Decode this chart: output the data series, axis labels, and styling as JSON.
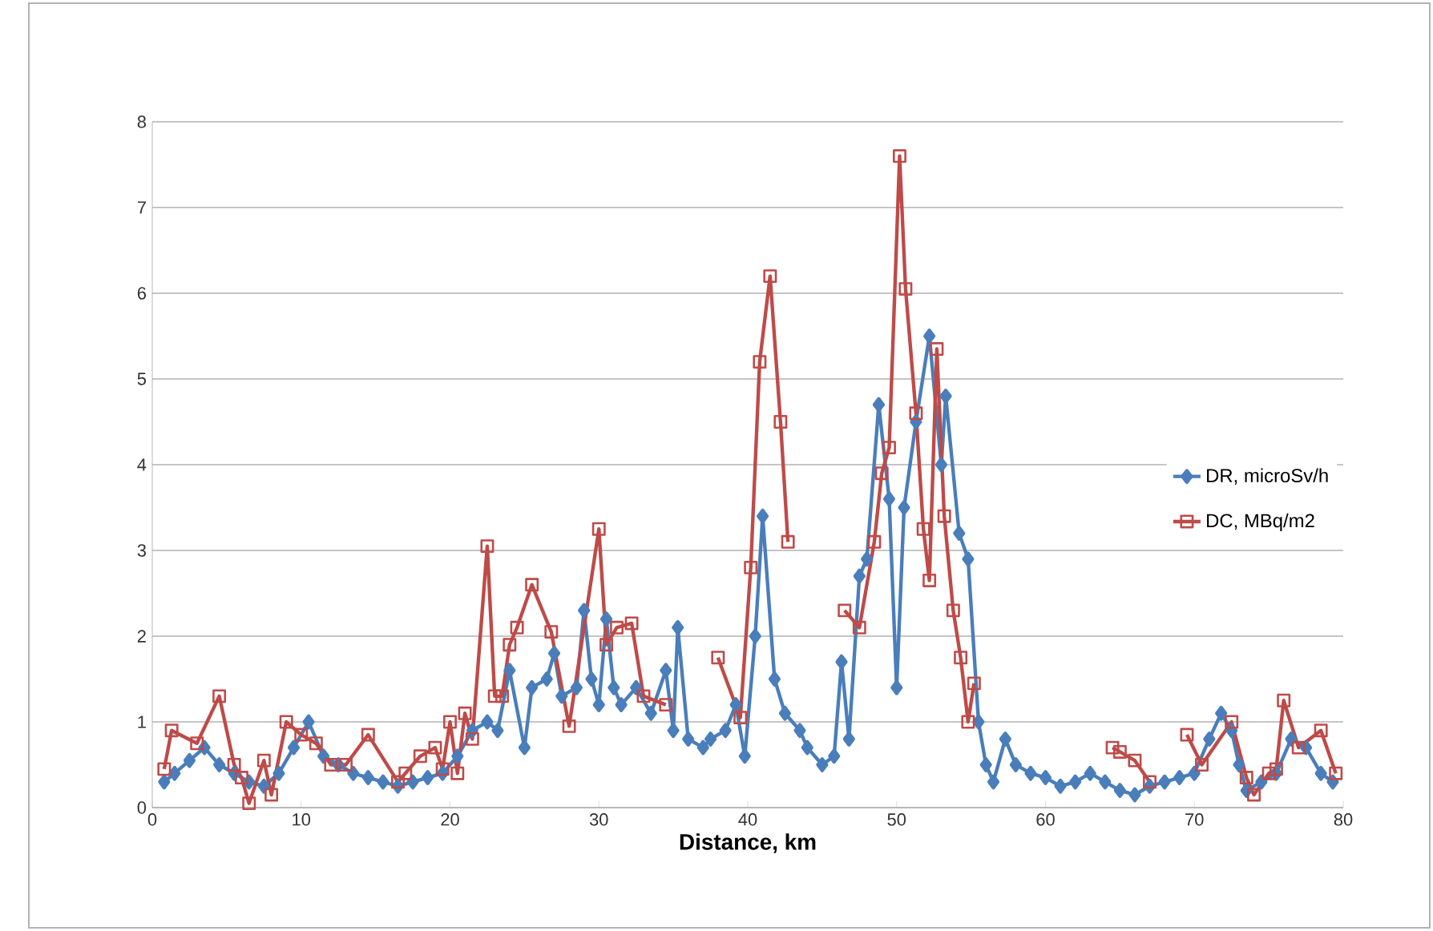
{
  "chart_data": {
    "type": "line",
    "xlabel": "Distance, km",
    "xlim": [
      0,
      80
    ],
    "xticks": [
      0,
      10,
      20,
      30,
      40,
      50,
      60,
      70,
      80
    ],
    "ylim": [
      0,
      8
    ],
    "yticks": [
      0,
      1,
      2,
      3,
      4,
      5,
      6,
      7,
      8
    ],
    "grid": "y",
    "legend": "right",
    "line_style": "solid",
    "series": [
      {
        "name": "DR, microSv/h",
        "color": "#4a7ebb",
        "marker": "diamond",
        "x": [
          0.8,
          1.5,
          2.5,
          3.5,
          4.5,
          5.5,
          6.5,
          7.5,
          8.5,
          9.5,
          10.5,
          11.5,
          12.5,
          13.5,
          14.5,
          15.5,
          16.5,
          17.5,
          18.5,
          19.5,
          20.5,
          21.5,
          22.5,
          23.2,
          24,
          25,
          25.5,
          26.5,
          27,
          27.5,
          28.5,
          29,
          29.5,
          30,
          30.5,
          31,
          31.5,
          32.5,
          33.5,
          34.5,
          35,
          35.3,
          36,
          37,
          37.5,
          38.5,
          39.2,
          39.8,
          40.5,
          41,
          41.8,
          42.5,
          43.5,
          44,
          45,
          45.8,
          46.3,
          46.8,
          47.5,
          48,
          48.8,
          49.5,
          50,
          50.5,
          51.3,
          52.2,
          53,
          53.3,
          54.2,
          54.8,
          55.5,
          56,
          56.5,
          57.3,
          58,
          59,
          60,
          61,
          62,
          63,
          64,
          65,
          66,
          67,
          68,
          69,
          70,
          71,
          71.8,
          72.5,
          73,
          73.5,
          74.5,
          75.5,
          76.5,
          77.5,
          78.5,
          79.3
        ],
        "values": [
          0.3,
          0.4,
          0.55,
          0.7,
          0.5,
          0.4,
          0.3,
          0.25,
          0.4,
          0.7,
          1.0,
          0.6,
          0.5,
          0.4,
          0.35,
          0.3,
          0.25,
          0.3,
          0.35,
          0.4,
          0.6,
          0.9,
          1.0,
          0.9,
          1.6,
          0.7,
          1.4,
          1.5,
          1.8,
          1.3,
          1.4,
          2.3,
          1.5,
          1.2,
          2.2,
          1.4,
          1.2,
          1.4,
          1.1,
          1.6,
          0.9,
          2.1,
          0.8,
          0.7,
          0.8,
          0.9,
          1.2,
          0.6,
          2.0,
          3.4,
          1.5,
          1.1,
          0.9,
          0.7,
          0.5,
          0.6,
          1.7,
          0.8,
          2.7,
          2.9,
          4.7,
          3.6,
          1.4,
          3.5,
          4.5,
          5.5,
          4.0,
          4.8,
          3.2,
          2.9,
          1.0,
          0.5,
          0.3,
          0.8,
          0.5,
          0.4,
          0.35,
          0.25,
          0.3,
          0.4,
          0.3,
          0.2,
          0.15,
          0.25,
          0.3,
          0.35,
          0.4,
          0.8,
          1.1,
          0.9,
          0.5,
          0.2,
          0.3,
          0.4,
          0.8,
          0.7,
          0.4,
          0.3
        ]
      },
      {
        "name": "DC, MBq/m2",
        "color": "#be4b48",
        "marker": "square",
        "x": [
          0.8,
          1.3,
          3,
          4.5,
          5.5,
          6,
          6.5,
          7.5,
          8,
          9,
          10,
          11,
          12,
          13,
          14.5,
          16.5,
          17,
          18,
          19,
          19.5,
          20,
          20.5,
          21,
          21.5,
          22.5,
          23,
          23.5,
          24,
          24.5,
          25.5,
          26.8,
          28,
          30,
          30.5,
          31.2,
          32.2,
          33,
          34.5,
          36,
          38,
          39.5,
          40.2,
          40.8,
          41.5,
          42.2,
          42.7,
          44.5,
          46.5,
          47.5,
          48.5,
          49,
          49.5,
          50.2,
          50.6,
          51.3,
          51.8,
          52.2,
          52.7,
          53.2,
          53.8,
          54.3,
          54.8,
          55.2,
          60,
          64.5,
          65,
          66,
          67,
          68,
          69.5,
          70.5,
          72.5,
          73.5,
          74,
          75,
          75.5,
          76,
          77,
          78.5,
          79.5
        ],
        "values": [
          0.45,
          0.9,
          0.75,
          1.3,
          0.5,
          0.35,
          0.05,
          0.55,
          0.15,
          1.0,
          0.85,
          0.75,
          0.5,
          0.5,
          0.85,
          0.3,
          0.4,
          0.6,
          0.7,
          0.45,
          1.0,
          0.4,
          1.1,
          0.8,
          3.05,
          1.3,
          1.3,
          1.9,
          2.1,
          2.6,
          2.05,
          0.95,
          3.25,
          1.9,
          2.1,
          2.15,
          1.3,
          1.2,
          null,
          1.75,
          1.05,
          2.8,
          5.2,
          6.2,
          4.5,
          3.1,
          null,
          2.3,
          2.1,
          3.1,
          3.9,
          4.2,
          7.6,
          6.05,
          4.6,
          3.25,
          2.65,
          5.35,
          3.4,
          2.3,
          1.75,
          1.0,
          1.45,
          null,
          0.7,
          0.65,
          0.55,
          0.3,
          null,
          0.85,
          0.5,
          1.0,
          0.35,
          0.15,
          0.4,
          0.45,
          1.25,
          0.7,
          0.9,
          0.4
        ]
      }
    ]
  }
}
